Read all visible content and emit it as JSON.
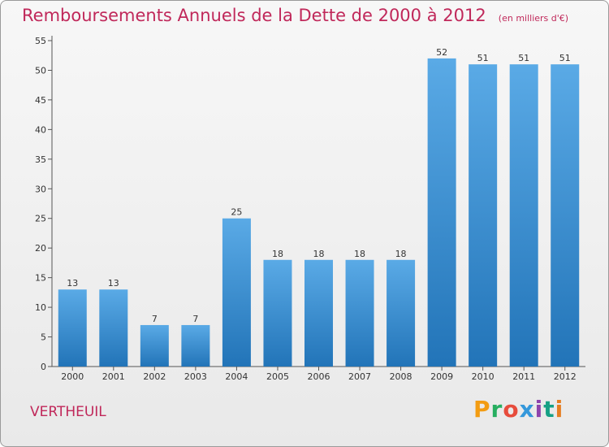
{
  "header": {
    "title": "Remboursements Annuels de la Dette de 2000 à 2012",
    "unit": "(en milliers d'€)"
  },
  "footer": {
    "commune": "VERTHEUIL",
    "logo": {
      "text": "Proxiti",
      "colors": [
        "#f39c12",
        "#27ae60",
        "#e74c3c",
        "#3498db",
        "#8e44ad",
        "#16a085",
        "#e67e22"
      ]
    }
  },
  "chart_data": {
    "type": "bar",
    "title": "Remboursements Annuels de la Dette de 2000 à 2012",
    "subtitle": "(en milliers d'€)",
    "xlabel": "",
    "ylabel": "",
    "categories": [
      "2000",
      "2001",
      "2002",
      "2003",
      "2004",
      "2005",
      "2006",
      "2007",
      "2008",
      "2009",
      "2010",
      "2011",
      "2012"
    ],
    "values": [
      13,
      13,
      7,
      7,
      25,
      18,
      18,
      18,
      18,
      52,
      51,
      51,
      51
    ],
    "ylim": [
      0,
      55
    ],
    "yticks": [
      0,
      5,
      10,
      15,
      20,
      25,
      30,
      35,
      40,
      45,
      50,
      55
    ],
    "grid": false,
    "legend": "none",
    "colors": {
      "bar_top": "#5aaae6",
      "bar_bottom": "#2274b8",
      "axis": "#555555"
    }
  }
}
